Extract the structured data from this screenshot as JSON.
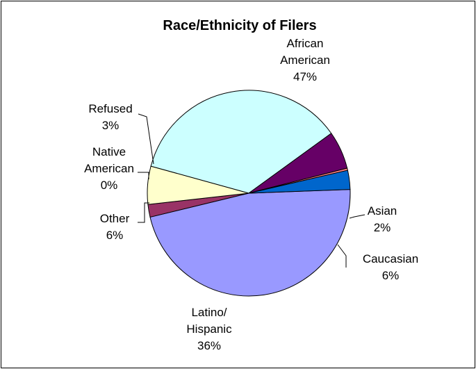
{
  "chart_data": {
    "type": "pie",
    "title": "Race/Ethnicity of Filers",
    "slices": [
      {
        "label": [
          "African",
          "American",
          "47%"
        ],
        "value": 47,
        "color": "#9999ff"
      },
      {
        "label": [
          "Asian",
          "2%"
        ],
        "value": 2,
        "color": "#993366"
      },
      {
        "label": [
          "Caucasian",
          "6%"
        ],
        "value": 6,
        "color": "#ffffcc"
      },
      {
        "label": [
          "Latino/",
          "Hispanic",
          "36%"
        ],
        "value": 36,
        "color": "#ccffff"
      },
      {
        "label": [
          "Other",
          "6%"
        ],
        "value": 6,
        "color": "#660066"
      },
      {
        "label": [
          "Native",
          "American",
          "0%"
        ],
        "value": 0,
        "color": "#ff8080"
      },
      {
        "label": [
          "Refused",
          "3%"
        ],
        "value": 3,
        "color": "#0066cc"
      }
    ],
    "legend": "none"
  }
}
